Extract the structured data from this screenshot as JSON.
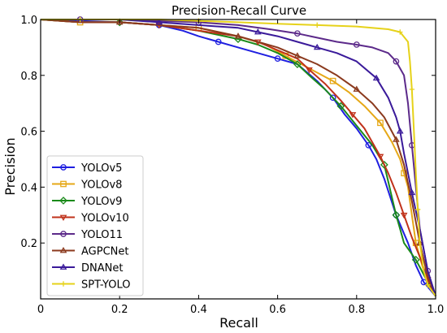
{
  "chart_data": {
    "type": "line",
    "title": "Precision-Recall Curve",
    "xlabel": "Recall",
    "ylabel": "Precision",
    "xlim": [
      0,
      1
    ],
    "ylim": [
      0,
      1
    ],
    "xticks": [
      0,
      0.2,
      0.4,
      0.6,
      0.8,
      1.0
    ],
    "xtick_labels": [
      "0",
      "0.2",
      "0.4",
      "0.6",
      "0.8",
      "1.0"
    ],
    "yticks": [
      0.2,
      0.4,
      0.6,
      0.8,
      1.0
    ],
    "ytick_labels": [
      "0.2",
      "0.4",
      "0.6",
      "0.8",
      "1.0"
    ],
    "grid": false,
    "legend_position": "lower-left",
    "series": [
      {
        "name": "YOLOv5",
        "color": "#1f1fe0",
        "marker": "circle",
        "x": [
          0,
          0.1,
          0.2,
          0.3,
          0.36,
          0.4,
          0.45,
          0.5,
          0.55,
          0.6,
          0.65,
          0.7,
          0.74,
          0.77,
          0.8,
          0.83,
          0.85,
          0.87,
          0.9,
          0.93,
          0.95,
          0.97,
          1.0
        ],
        "y": [
          1.0,
          0.995,
          0.99,
          0.98,
          0.96,
          0.94,
          0.92,
          0.9,
          0.88,
          0.86,
          0.84,
          0.78,
          0.72,
          0.66,
          0.61,
          0.55,
          0.5,
          0.43,
          0.3,
          0.2,
          0.12,
          0.06,
          0.01
        ]
      },
      {
        "name": "YOLOv8",
        "color": "#e6a817",
        "marker": "square",
        "x": [
          0,
          0.1,
          0.2,
          0.3,
          0.4,
          0.5,
          0.57,
          0.62,
          0.66,
          0.7,
          0.74,
          0.78,
          0.82,
          0.86,
          0.89,
          0.91,
          0.92,
          0.93,
          0.94,
          0.95,
          0.97,
          1.0
        ],
        "y": [
          1.0,
          0.99,
          0.99,
          0.98,
          0.97,
          0.94,
          0.91,
          0.87,
          0.84,
          0.81,
          0.78,
          0.74,
          0.69,
          0.63,
          0.56,
          0.5,
          0.45,
          0.4,
          0.3,
          0.2,
          0.1,
          0.01
        ]
      },
      {
        "name": "YOLOv9",
        "color": "#1a8a1a",
        "marker": "diamond",
        "x": [
          0,
          0.1,
          0.2,
          0.3,
          0.4,
          0.5,
          0.55,
          0.6,
          0.65,
          0.68,
          0.72,
          0.76,
          0.8,
          0.84,
          0.87,
          0.88,
          0.89,
          0.9,
          0.91,
          0.92,
          0.95,
          0.98,
          1.0
        ],
        "y": [
          1.0,
          0.99,
          0.99,
          0.98,
          0.96,
          0.93,
          0.91,
          0.88,
          0.84,
          0.8,
          0.75,
          0.69,
          0.62,
          0.55,
          0.48,
          0.42,
          0.36,
          0.3,
          0.25,
          0.2,
          0.14,
          0.06,
          0.01
        ]
      },
      {
        "name": "YOLOv10",
        "color": "#c0321b",
        "marker": "triangle-down",
        "x": [
          0,
          0.1,
          0.2,
          0.3,
          0.4,
          0.5,
          0.55,
          0.6,
          0.65,
          0.68,
          0.72,
          0.76,
          0.79,
          0.82,
          0.84,
          0.86,
          0.88,
          0.9,
          0.92,
          0.94,
          0.96,
          0.98,
          1.0
        ],
        "y": [
          1.0,
          0.99,
          0.99,
          0.98,
          0.96,
          0.94,
          0.92,
          0.89,
          0.86,
          0.82,
          0.77,
          0.71,
          0.66,
          0.61,
          0.56,
          0.51,
          0.45,
          0.38,
          0.3,
          0.22,
          0.15,
          0.07,
          0.01
        ]
      },
      {
        "name": "YOLO11",
        "color": "#5c2a8a",
        "marker": "circle",
        "x": [
          0,
          0.1,
          0.2,
          0.3,
          0.4,
          0.5,
          0.58,
          0.65,
          0.7,
          0.75,
          0.8,
          0.84,
          0.88,
          0.9,
          0.92,
          0.93,
          0.94,
          0.95,
          0.96,
          0.98,
          1.0
        ],
        "y": [
          1.0,
          1.0,
          1.0,
          0.995,
          0.99,
          0.98,
          0.965,
          0.95,
          0.935,
          0.92,
          0.91,
          0.9,
          0.88,
          0.85,
          0.8,
          0.7,
          0.55,
          0.4,
          0.25,
          0.1,
          0.01
        ]
      },
      {
        "name": "AGPCNet",
        "color": "#8b3a1e",
        "marker": "triangle-up",
        "x": [
          0,
          0.1,
          0.2,
          0.3,
          0.4,
          0.5,
          0.55,
          0.6,
          0.65,
          0.7,
          0.75,
          0.8,
          0.84,
          0.87,
          0.9,
          0.92,
          0.94,
          0.96,
          0.98,
          1.0
        ],
        "y": [
          1.0,
          0.99,
          0.99,
          0.98,
          0.97,
          0.94,
          0.92,
          0.9,
          0.87,
          0.84,
          0.8,
          0.75,
          0.7,
          0.65,
          0.57,
          0.48,
          0.35,
          0.2,
          0.08,
          0.01
        ]
      },
      {
        "name": "DNANet",
        "color": "#3a1a9a",
        "marker": "triangle-up",
        "x": [
          0,
          0.1,
          0.2,
          0.3,
          0.4,
          0.5,
          0.55,
          0.6,
          0.65,
          0.7,
          0.75,
          0.8,
          0.85,
          0.88,
          0.9,
          0.91,
          0.92,
          0.93,
          0.94,
          0.96,
          0.98,
          1.0
        ],
        "y": [
          1.0,
          1.0,
          1.0,
          0.99,
          0.98,
          0.97,
          0.955,
          0.94,
          0.92,
          0.9,
          0.88,
          0.85,
          0.79,
          0.72,
          0.65,
          0.6,
          0.52,
          0.45,
          0.38,
          0.25,
          0.1,
          0.01
        ]
      },
      {
        "name": "SPT-YOLO",
        "color": "#e6d21a",
        "marker": "plus",
        "x": [
          0,
          0.1,
          0.2,
          0.3,
          0.4,
          0.5,
          0.6,
          0.7,
          0.8,
          0.88,
          0.91,
          0.93,
          0.935,
          0.94,
          0.945,
          0.95,
          0.955,
          0.96,
          0.97,
          0.98,
          1.0
        ],
        "y": [
          1.0,
          1.0,
          1.0,
          1.0,
          0.995,
          0.99,
          0.985,
          0.98,
          0.975,
          0.965,
          0.955,
          0.92,
          0.85,
          0.75,
          0.6,
          0.45,
          0.32,
          0.2,
          0.1,
          0.05,
          0.01
        ]
      }
    ]
  }
}
